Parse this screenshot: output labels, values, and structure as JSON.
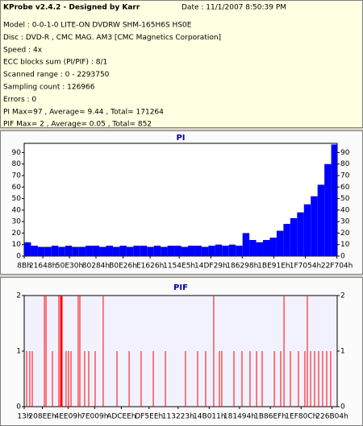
{
  "header": {
    "title": "KProbe v2.4.2 - Designed by Karr",
    "date": "Date : 11/1/2007 8:50:39 PM",
    "lines": [
      "Model : 0-0-1-0 LITE-ON DVDRW SHM-165H6S HS0E",
      "Disc : DVD-R , CMC MAG. AM3 [CMC Magnetics Corporation]",
      "Speed : 4x",
      "ECC blocks sum (PI/PIF) : 8/1",
      "Scanned range : 0 - 2293750",
      "Sampling count : 126966",
      "Errors : 0",
      "PI Max=97 , Average= 9.44 , Total= 171264",
      "PIF Max= 2 , Average= 0.05 , Total= 852"
    ]
  },
  "chart_data": [
    {
      "type": "bar",
      "title": "PI",
      "color": "#0000ff",
      "x": [
        0,
        50000,
        100000,
        150000,
        200000,
        250000,
        300000,
        350000,
        400000,
        450000,
        500000,
        550000,
        600000,
        650000,
        700000,
        750000,
        800000,
        850000,
        900000,
        950000,
        1000000,
        1050000,
        1100000,
        1150000,
        1200000,
        1250000,
        1300000,
        1350000,
        1400000,
        1450000,
        1500000,
        1550000,
        1600000,
        1650000,
        1700000,
        1750000,
        1800000,
        1850000,
        1900000,
        1950000,
        2000000,
        2050000,
        2100000,
        2150000,
        2200000,
        2250000
      ],
      "values": [
        12,
        9,
        8,
        8,
        9,
        8,
        9,
        8,
        8,
        9,
        9,
        8,
        9,
        8,
        9,
        8,
        9,
        9,
        8,
        9,
        8,
        9,
        9,
        8,
        9,
        9,
        8,
        9,
        10,
        9,
        10,
        9,
        20,
        14,
        12,
        14,
        16,
        22,
        28,
        33,
        38,
        45,
        52,
        62,
        80,
        97
      ],
      "xlim": [
        0,
        2293750
      ],
      "ylim": [
        0,
        98
      ],
      "yticks": [
        0,
        10,
        20,
        30,
        40,
        50,
        60,
        70,
        80,
        90
      ],
      "xticks": [
        {
          "value": 139,
          "label": "8Bh"
        },
        {
          "value": 136776,
          "label": "21648h"
        },
        {
          "value": 331312,
          "label": "50E30h"
        },
        {
          "value": 525956,
          "label": "80284h"
        },
        {
          "value": 724518,
          "label": "B0E26h"
        },
        {
          "value": 923174,
          "label": "E1626h"
        },
        {
          "value": 1135845,
          "label": "1154E5h"
        },
        {
          "value": 1367849,
          "label": "14DF29h"
        },
        {
          "value": 1598104,
          "label": "186298h"
        },
        {
          "value": 1829150,
          "label": "1BE91Eh"
        },
        {
          "value": 2060372,
          "label": "1F7054h"
        },
        {
          "value": 2291460,
          "label": "22F704h"
        }
      ]
    },
    {
      "type": "stem",
      "title": "PIF",
      "color": "#ff0000",
      "x": [
        18000,
        41000,
        59000,
        148000,
        160000,
        207000,
        254000,
        266000,
        272000,
        278000,
        307000,
        325000,
        343000,
        396000,
        408000,
        443000,
        473000,
        520000,
        579000,
        680000,
        769000,
        857000,
        946000,
        1035000,
        1182000,
        1271000,
        1330000,
        1389000,
        1431000,
        1448000,
        1537000,
        1596000,
        1655000,
        1703000,
        1744000,
        1833000,
        1880000,
        1904000,
        1951000,
        2010000,
        2057000,
        2075000,
        2099000,
        2128000,
        2158000,
        2187000,
        2217000,
        2246000
      ],
      "values": [
        1,
        1,
        1,
        2,
        2,
        1,
        2,
        2,
        2,
        2,
        1,
        1,
        1,
        2,
        2,
        1,
        1,
        1,
        2,
        1,
        1,
        1,
        1,
        1,
        1,
        1,
        1,
        2,
        1,
        1,
        1,
        1,
        1,
        1,
        1,
        1,
        1,
        2,
        1,
        1,
        1,
        2,
        1,
        1,
        1,
        1,
        1,
        1
      ],
      "xlim": [
        0,
        2293750
      ],
      "ylim": [
        0,
        2
      ],
      "yticks": [
        0,
        1,
        2
      ],
      "xticks": [
        {
          "value": 19,
          "label": "13h"
        },
        {
          "value": 133358,
          "label": "208EEh"
        },
        {
          "value": 323081,
          "label": "4EE09h"
        },
        {
          "value": 516105,
          "label": "7E009h"
        },
        {
          "value": 711918,
          "label": "ADCEEh"
        },
        {
          "value": 914926,
          "label": "DF5EEh"
        },
        {
          "value": 1127971,
          "label": "113223h"
        },
        {
          "value": 1355793,
          "label": "14B011h"
        },
        {
          "value": 1578132,
          "label": "181494h"
        },
        {
          "value": 1803503,
          "label": "1B86EFh"
        },
        {
          "value": 2029580,
          "label": "1EF80Ch"
        },
        {
          "value": 2255620,
          "label": "226B04h"
        }
      ]
    }
  ]
}
